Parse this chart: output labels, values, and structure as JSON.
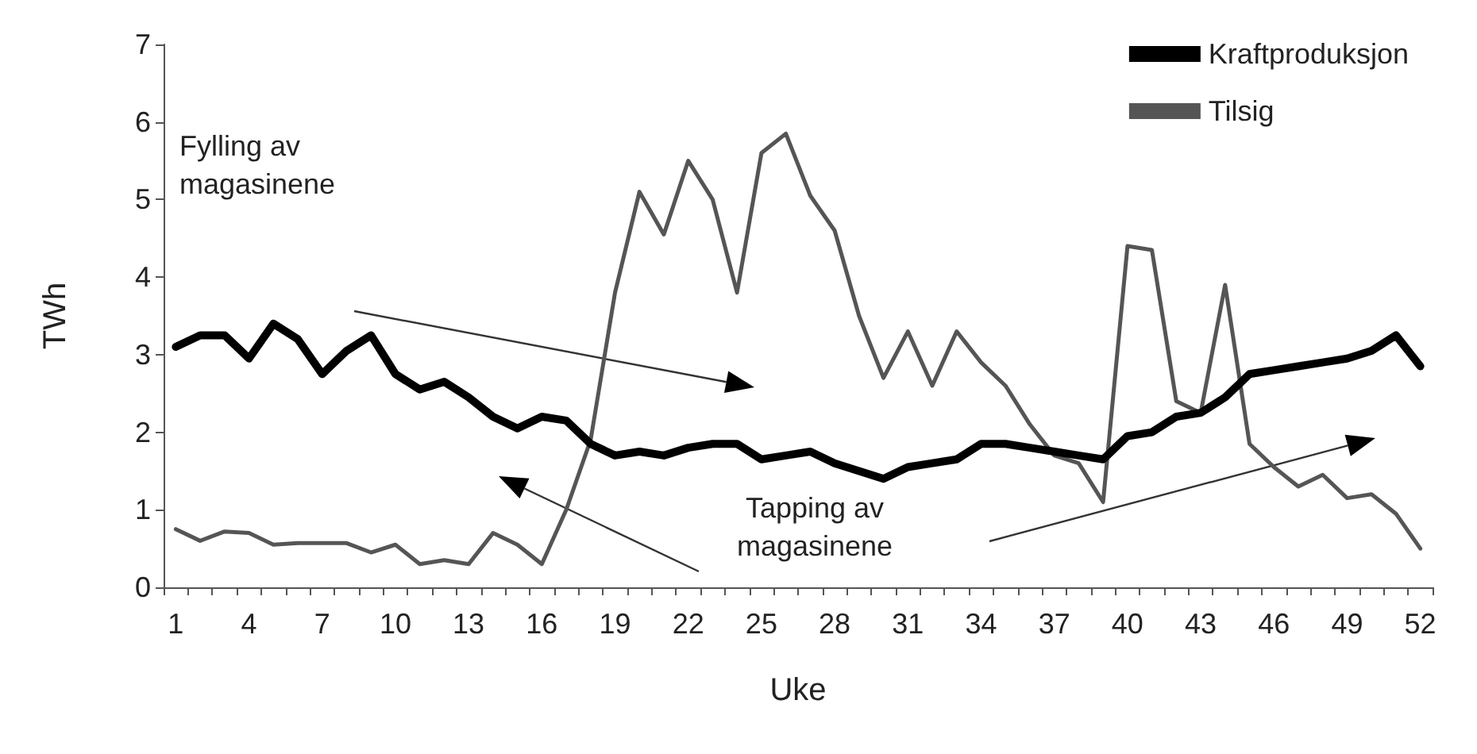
{
  "chart_data": {
    "type": "line",
    "xlabel": "Uke",
    "ylabel": "TWh",
    "categories": [
      "1",
      null,
      null,
      "4",
      null,
      null,
      "7",
      null,
      null,
      "10",
      null,
      null,
      "13",
      null,
      null,
      "16",
      null,
      null,
      "19",
      null,
      null,
      "22",
      null,
      null,
      "25",
      null,
      null,
      "28",
      null,
      null,
      "31",
      null,
      null,
      "34",
      null,
      null,
      "37",
      null,
      null,
      "40",
      null,
      null,
      "43",
      null,
      null,
      "46",
      null,
      null,
      "49",
      null,
      null,
      "52"
    ],
    "series": [
      {
        "name": "Kraftproduksjon",
        "color": "#000000",
        "values": [
          3.1,
          3.25,
          3.25,
          2.95,
          3.4,
          3.2,
          2.75,
          3.05,
          3.25,
          2.75,
          2.55,
          2.65,
          2.45,
          2.2,
          2.05,
          2.2,
          2.15,
          1.85,
          1.7,
          1.75,
          1.7,
          1.8,
          1.85,
          1.85,
          1.65,
          1.7,
          1.75,
          1.6,
          1.5,
          1.4,
          1.55,
          1.6,
          1.65,
          1.85,
          1.85,
          1.8,
          1.75,
          1.7,
          1.65,
          1.95,
          2.0,
          2.2,
          2.25,
          2.45,
          2.75,
          2.8,
          2.85,
          2.9,
          2.95,
          3.05,
          3.25,
          2.85
        ]
      },
      {
        "name": "Tilsig",
        "color": "#555555",
        "values": [
          0.75,
          0.6,
          0.72,
          0.7,
          0.55,
          0.57,
          0.57,
          0.57,
          0.45,
          0.55,
          0.3,
          0.35,
          0.3,
          0.7,
          0.55,
          0.3,
          1.0,
          1.9,
          3.8,
          5.1,
          4.55,
          5.5,
          5.0,
          3.8,
          5.6,
          5.85,
          5.05,
          4.6,
          3.5,
          2.7,
          3.3,
          2.6,
          3.3,
          2.9,
          2.6,
          2.1,
          1.7,
          1.6,
          1.1,
          4.4,
          4.35,
          2.4,
          2.25,
          3.9,
          1.85,
          1.55,
          1.3,
          1.45,
          1.15,
          1.2,
          0.95,
          0.5
        ]
      }
    ],
    "ylim": [
      0,
      7
    ],
    "yticks": [
      0,
      1,
      2,
      3,
      4,
      5,
      6,
      7
    ],
    "grid": false,
    "legend": "top right",
    "marker": "none",
    "line_style": "solid",
    "annotations": [
      "Fylling av\nmagasinene",
      "Tapping av\nmagasinene"
    ]
  }
}
